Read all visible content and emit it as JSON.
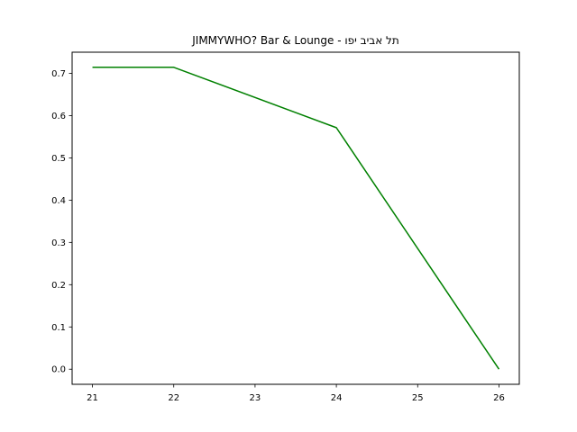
{
  "chart_data": {
    "type": "line",
    "title": "JIMMYWHO? Bar & Lounge - תל אביב יפו",
    "xlabel": "",
    "ylabel": "",
    "x": [
      21,
      22,
      24,
      26
    ],
    "series": [
      {
        "values": [
          0.7143,
          0.7143,
          0.5714,
          0.0
        ],
        "color": "#008000"
      }
    ],
    "xticks": [
      21,
      22,
      23,
      24,
      25,
      26
    ],
    "yticks": [
      0.0,
      0.1,
      0.2,
      0.3,
      0.4,
      0.5,
      0.6,
      0.7
    ],
    "xlim": [
      20.75,
      26.25
    ],
    "ylim": [
      -0.0357,
      0.75
    ],
    "grid": false,
    "legend": "none"
  }
}
